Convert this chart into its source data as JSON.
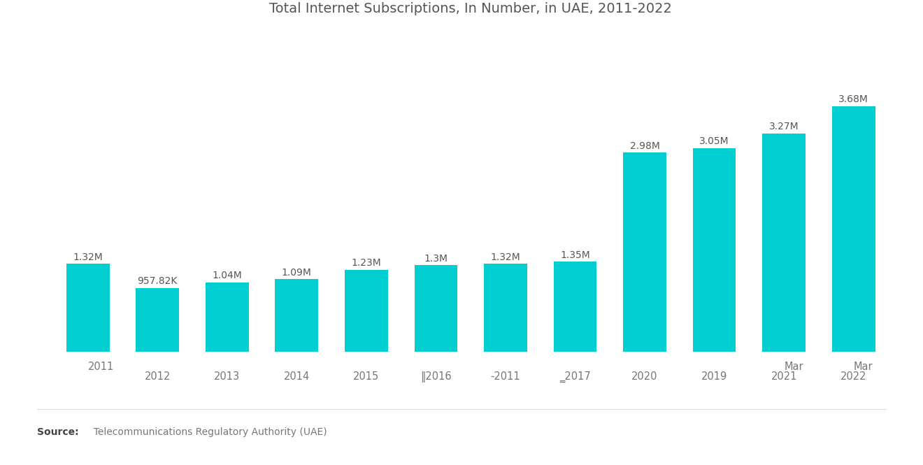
{
  "title": "Total Internet Subscriptions, In Number, in UAE, 2011-2022",
  "categories": [
    "2011",
    "2012",
    "2013",
    "2014",
    "2015",
    "‖2016",
    "‑2011",
    "‗2017",
    "2020",
    "2019",
    "Mar\n2021",
    "Mar\n2022"
  ],
  "tick_labels": [
    "2011",
    "2012",
    "2013",
    "2014",
    "2015",
    "‖2016",
    "‑2011",
    "‗2017",
    "2020",
    "2019",
    "Mar\n2021",
    "Mar\n2022"
  ],
  "values": [
    1320000,
    957820,
    1040000,
    1090000,
    1230000,
    1300000,
    1320000,
    1350000,
    2980000,
    3050000,
    3270000,
    3680000
  ],
  "bar_labels": [
    "1.32M",
    "957.82K",
    "1.04M",
    "1.09M",
    "1.23M",
    "1.3M",
    "1.32M",
    "1.35M",
    "2.98M",
    "3.05M",
    "3.27M",
    "3.68M"
  ],
  "bar_color": "#00CED1",
  "background_color": "#ffffff",
  "source_bold": "Source:",
  "source_rest": "  Telecommunications Regulatory Authority (UAE)",
  "title_fontsize": 14,
  "label_fontsize": 10,
  "tick_fontsize": 10.5,
  "source_fontsize": 10,
  "ylim_factor": 1.28
}
